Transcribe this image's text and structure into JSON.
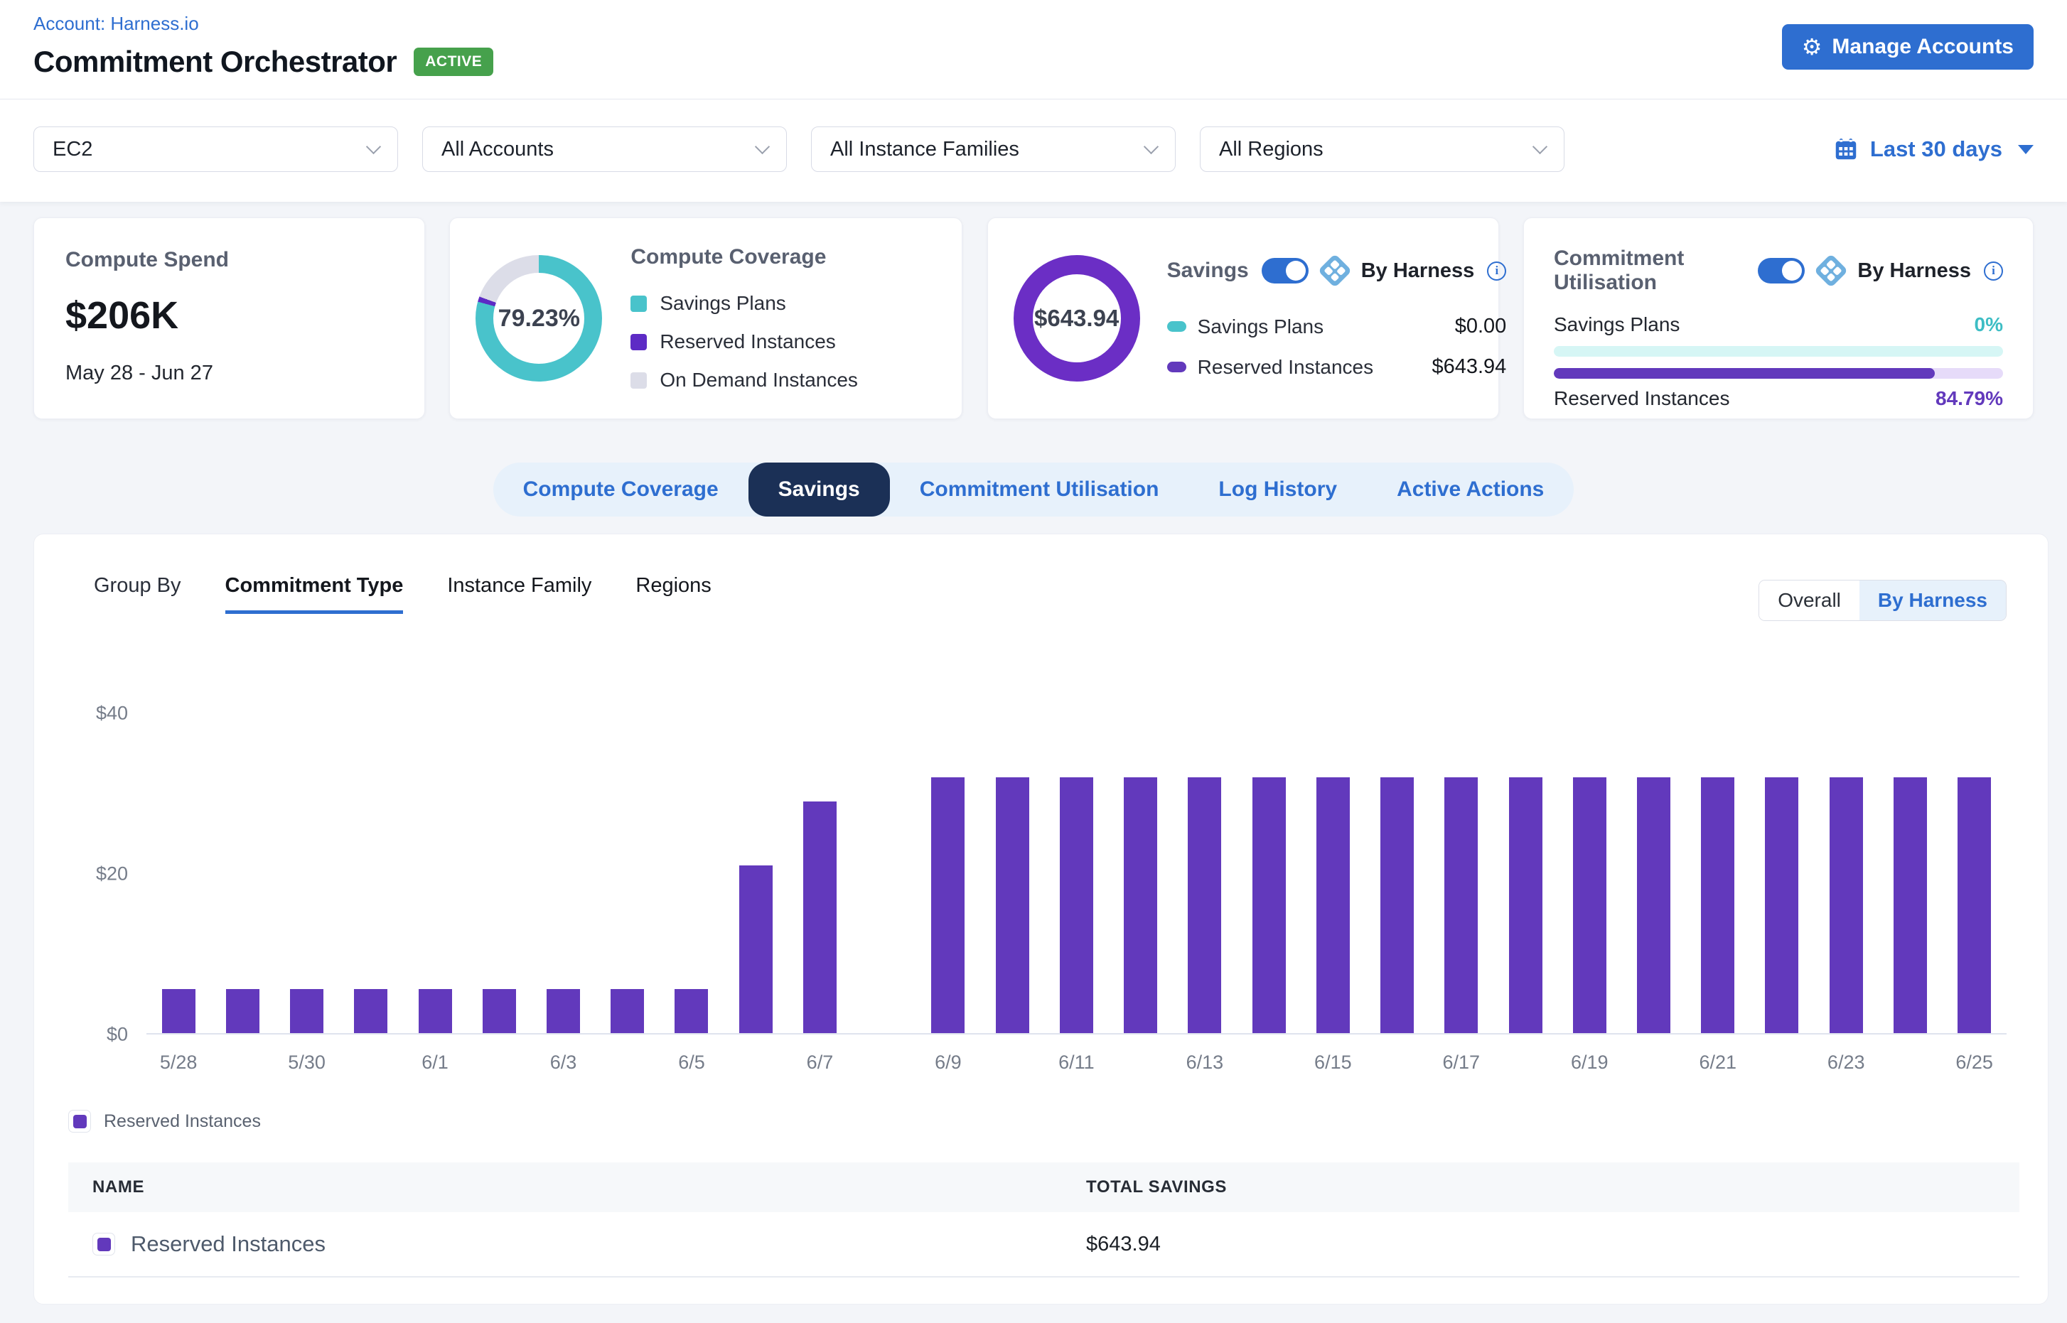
{
  "header": {
    "account_link": "Account: Harness.io",
    "title": "Commitment Orchestrator",
    "status_badge": "ACTIVE",
    "manage_accounts_label": "Manage Accounts"
  },
  "filters": {
    "service": "EC2",
    "accounts": "All Accounts",
    "instance_families": "All Instance Families",
    "regions": "All Regions",
    "date_range": "Last 30 days"
  },
  "cards": {
    "compute_spend": {
      "title": "Compute Spend",
      "value": "$206K",
      "period": "May 28 - Jun 27"
    },
    "compute_coverage": {
      "title": "Compute Coverage",
      "percentage": "79.23%",
      "donut": {
        "savings_plans_pct": 79.23,
        "reserved_instances_pct": 1.35,
        "on_demand_pct": 19.42
      },
      "legend": [
        {
          "label": "Savings Plans",
          "color": "#49C3CB"
        },
        {
          "label": "Reserved Instances",
          "color": "#5D2BC5"
        },
        {
          "label": "On Demand Instances",
          "color": "#DCDDE8"
        }
      ]
    },
    "savings": {
      "title": "Savings",
      "toggle_on": true,
      "by_label": "By Harness",
      "total": "$643.94",
      "rows": [
        {
          "label": "Savings Plans",
          "value": "$0.00",
          "color": "#49C3CB"
        },
        {
          "label": "Reserved Instances",
          "value": "$643.94",
          "color": "#6239BC"
        }
      ]
    },
    "commitment_utilisation": {
      "title": "Commitment Utilisation",
      "toggle_on": true,
      "by_label": "By Harness",
      "savings_plans_label": "Savings Plans",
      "savings_plans_pct_text": "0%",
      "savings_plans_value": 0,
      "reserved_instances_label": "Reserved Instances",
      "reserved_instances_pct_text": "84.79%",
      "reserved_instances_value": 84.79
    }
  },
  "tabs": {
    "items": [
      "Compute Coverage",
      "Savings",
      "Commitment Utilisation",
      "Log History",
      "Active Actions"
    ],
    "active": "Savings"
  },
  "group_by": {
    "label": "Group By",
    "options": [
      "Commitment Type",
      "Instance Family",
      "Regions"
    ],
    "active": "Commitment Type"
  },
  "view_toggle": {
    "options": [
      "Overall",
      "By Harness"
    ],
    "active": "By Harness"
  },
  "chart_data": {
    "type": "bar",
    "title": "",
    "xlabel": "",
    "ylabel": "",
    "ylim": [
      0,
      40
    ],
    "y_ticks": [
      "$0",
      "$20",
      "$40"
    ],
    "grid": false,
    "legend_position": "bottom-left",
    "x": [
      "5/28",
      "5/29",
      "5/30",
      "5/31",
      "6/1",
      "6/2",
      "6/3",
      "6/4",
      "6/5",
      "6/6",
      "6/7",
      "6/8",
      "6/9",
      "6/10",
      "6/11",
      "6/12",
      "6/13",
      "6/14",
      "6/15",
      "6/16",
      "6/17",
      "6/18",
      "6/19",
      "6/20",
      "6/21",
      "6/22",
      "6/23",
      "6/24",
      "6/25"
    ],
    "x_tick_labels_shown": [
      "5/28",
      "5/30",
      "6/1",
      "6/3",
      "6/5",
      "6/7",
      "6/9",
      "6/11",
      "6/13",
      "6/15",
      "6/17",
      "6/19",
      "6/21",
      "6/23",
      "6/25"
    ],
    "series": [
      {
        "name": "Reserved Instances",
        "color": "#6239BC",
        "values": [
          5.5,
          5.5,
          5.5,
          5.5,
          5.5,
          5.5,
          5.5,
          5.5,
          5.5,
          21,
          29,
          0,
          32,
          32,
          32,
          32,
          32,
          32,
          32,
          32,
          32,
          32,
          32,
          32,
          32,
          32,
          32,
          32,
          32
        ]
      }
    ]
  },
  "chart_legend": {
    "label": "Reserved Instances",
    "color": "#6239BC"
  },
  "table": {
    "columns": [
      "NAME",
      "TOTAL SAVINGS"
    ],
    "rows": [
      {
        "name": "Reserved Instances",
        "total_savings": "$643.94",
        "color": "#6239BC"
      }
    ]
  },
  "colors": {
    "primary_blue": "#2E6ED0",
    "active_tab_bg": "#1B3056",
    "badge_green": "#46A14C",
    "bar_purple": "#6239BC",
    "teal": "#49C3CB",
    "donut_purple": "#6B2EC5",
    "on_demand_gray": "#DCDDE8",
    "teal_track": "#D6F6F5",
    "purple_track": "#E6DBF9",
    "teal_text": "#3DBDC4",
    "purple_text": "#6239BC"
  }
}
